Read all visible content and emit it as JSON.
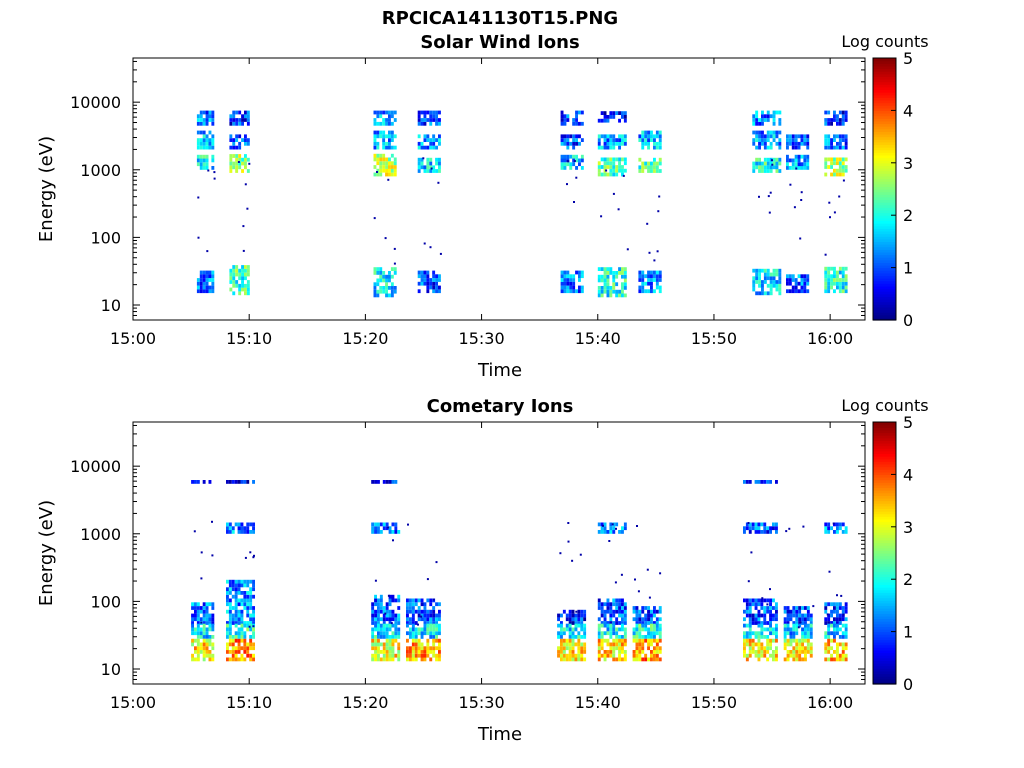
{
  "figure": {
    "title": "RPCICA141130T15.PNG"
  },
  "chart_data": [
    {
      "type": "heatmap",
      "title": "Solar Wind Ions",
      "xlabel": "Time",
      "ylabel": "Energy (eV)",
      "x_ticks": [
        "15:00",
        "15:10",
        "15:20",
        "15:30",
        "15:40",
        "15:50",
        "16:00"
      ],
      "x_range": [
        "15:00",
        "16:03"
      ],
      "y_scale": "log",
      "y_ticks": [
        "10",
        "100",
        "1000",
        "10000"
      ],
      "y_range": [
        6,
        45000
      ],
      "colorbar": {
        "label": "Log counts",
        "range": [
          0,
          5
        ],
        "ticks": [
          "0",
          "1",
          "2",
          "3",
          "4",
          "5"
        ],
        "colormap": "jet"
      },
      "bursts": [
        {
          "time_min": [
            5.5,
            7.0
          ],
          "groups": [
            {
              "energy": [
                4500,
                7000
              ],
              "level": 1.2
            },
            {
              "energy": [
                2000,
                3500
              ],
              "level": 1.6
            },
            {
              "energy": [
                1000,
                1600
              ],
              "level": 1.8
            },
            {
              "energy": [
                15,
                32
              ],
              "level": 1.2
            }
          ]
        },
        {
          "time_min": [
            8.3,
            10.0
          ],
          "groups": [
            {
              "energy": [
                4500,
                7500
              ],
              "level": 0.8
            },
            {
              "energy": [
                2000,
                3200
              ],
              "level": 1.0
            },
            {
              "energy": [
                900,
                1700
              ],
              "level": 2.6
            },
            {
              "energy": [
                14,
                35
              ],
              "level": 2.2
            }
          ]
        },
        {
          "time_min": [
            20.7,
            22.5
          ],
          "groups": [
            {
              "energy": [
                4500,
                7000
              ],
              "level": 1.3
            },
            {
              "energy": [
                2000,
                3500
              ],
              "level": 1.5
            },
            {
              "energy": [
                800,
                1600
              ],
              "level": 2.8
            },
            {
              "energy": [
                13,
                35
              ],
              "level": 1.8
            }
          ]
        },
        {
          "time_min": [
            24.5,
            26.5
          ],
          "groups": [
            {
              "energy": [
                4500,
                7000
              ],
              "level": 1.0
            },
            {
              "energy": [
                2000,
                3200
              ],
              "level": 1.4
            },
            {
              "energy": [
                900,
                1500
              ],
              "level": 1.7
            },
            {
              "energy": [
                15,
                30
              ],
              "level": 1.0
            }
          ]
        },
        {
          "time_min": [
            36.8,
            38.8
          ],
          "groups": [
            {
              "energy": [
                4500,
                7000
              ],
              "level": 1.0
            },
            {
              "energy": [
                2000,
                3200
              ],
              "level": 1.0
            },
            {
              "energy": [
                1000,
                1500
              ],
              "level": 1.6
            },
            {
              "energy": [
                15,
                30
              ],
              "level": 1.2
            }
          ]
        },
        {
          "time_min": [
            40.0,
            42.5
          ],
          "groups": [
            {
              "energy": [
                5000,
                7000
              ],
              "level": 0.8
            },
            {
              "energy": [
                2000,
                3200
              ],
              "level": 1.4
            },
            {
              "energy": [
                800,
                1500
              ],
              "level": 2.3
            },
            {
              "energy": [
                13,
                35
              ],
              "level": 2.0
            }
          ]
        },
        {
          "time_min": [
            43.5,
            45.5
          ],
          "groups": [
            {
              "energy": [
                2000,
                3500
              ],
              "level": 1.5
            },
            {
              "energy": [
                900,
                1400
              ],
              "level": 2.2
            },
            {
              "energy": [
                15,
                32
              ],
              "level": 1.4
            }
          ]
        },
        {
          "time_min": [
            53.3,
            55.7
          ],
          "groups": [
            {
              "energy": [
                4500,
                7000
              ],
              "level": 1.2
            },
            {
              "energy": [
                2000,
                3500
              ],
              "level": 1.4
            },
            {
              "energy": [
                900,
                1400
              ],
              "level": 2.0
            },
            {
              "energy": [
                14,
                32
              ],
              "level": 1.7
            }
          ]
        },
        {
          "time_min": [
            56.2,
            58.2
          ],
          "groups": [
            {
              "energy": [
                2000,
                3000
              ],
              "level": 1.1
            },
            {
              "energy": [
                1000,
                1500
              ],
              "level": 1.4
            },
            {
              "energy": [
                15,
                28
              ],
              "level": 1.1
            }
          ]
        },
        {
          "time_min": [
            59.5,
            61.5
          ],
          "groups": [
            {
              "energy": [
                4500,
                7000
              ],
              "level": 0.8
            },
            {
              "energy": [
                2000,
                3200
              ],
              "level": 1.1
            },
            {
              "energy": [
                800,
                1500
              ],
              "level": 2.7
            },
            {
              "energy": [
                15,
                33
              ],
              "level": 2.0
            }
          ]
        }
      ]
    },
    {
      "type": "heatmap",
      "title": "Cometary Ions",
      "xlabel": "Time",
      "ylabel": "Energy (eV)",
      "x_ticks": [
        "15:00",
        "15:10",
        "15:20",
        "15:30",
        "15:40",
        "15:50",
        "16:00"
      ],
      "x_range": [
        "15:00",
        "16:03"
      ],
      "y_scale": "log",
      "y_ticks": [
        "10",
        "100",
        "1000",
        "10000"
      ],
      "y_range": [
        6,
        45000
      ],
      "colorbar": {
        "label": "Log counts",
        "range": [
          0,
          5
        ],
        "ticks": [
          "0",
          "1",
          "2",
          "3",
          "4",
          "5"
        ],
        "colormap": "jet"
      },
      "bursts": [
        {
          "time_min": [
            5.0,
            7.0
          ],
          "groups": [
            {
              "energy": [
                45,
                90
              ],
              "level": 1.2
            },
            {
              "energy": [
                28,
                45
              ],
              "level": 1.8
            },
            {
              "energy": [
                13,
                28
              ],
              "level": 3.2
            },
            {
              "energy": [
                5500,
                6200
              ],
              "level": 0.6
            }
          ]
        },
        {
          "time_min": [
            8.0,
            10.5
          ],
          "groups": [
            {
              "energy": [
                45,
                200
              ],
              "level": 1.3
            },
            {
              "energy": [
                28,
                45
              ],
              "level": 2.0
            },
            {
              "energy": [
                13,
                28
              ],
              "level": 3.6
            },
            {
              "energy": [
                1000,
                1300
              ],
              "level": 1.3
            },
            {
              "energy": [
                5500,
                6200
              ],
              "level": 0.7
            }
          ]
        },
        {
          "time_min": [
            20.5,
            23.0
          ],
          "groups": [
            {
              "energy": [
                45,
                120
              ],
              "level": 1.1
            },
            {
              "energy": [
                28,
                45
              ],
              "level": 1.8
            },
            {
              "energy": [
                13,
                28
              ],
              "level": 3.1
            },
            {
              "energy": [
                1000,
                1300
              ],
              "level": 1.2
            },
            {
              "energy": [
                5500,
                6200
              ],
              "level": 0.7
            }
          ]
        },
        {
          "time_min": [
            23.5,
            26.5
          ],
          "groups": [
            {
              "energy": [
                45,
                110
              ],
              "level": 1.0
            },
            {
              "energy": [
                28,
                45
              ],
              "level": 1.8
            },
            {
              "energy": [
                13,
                28
              ],
              "level": 3.5
            }
          ]
        },
        {
          "time_min": [
            36.5,
            39.0
          ],
          "groups": [
            {
              "energy": [
                45,
                70
              ],
              "level": 0.8
            },
            {
              "energy": [
                28,
                45
              ],
              "level": 1.8
            },
            {
              "energy": [
                13,
                28
              ],
              "level": 3.2
            }
          ]
        },
        {
          "time_min": [
            40.0,
            42.5
          ],
          "groups": [
            {
              "energy": [
                45,
                110
              ],
              "level": 1.0
            },
            {
              "energy": [
                28,
                45
              ],
              "level": 1.8
            },
            {
              "energy": [
                13,
                28
              ],
              "level": 3.3
            },
            {
              "energy": [
                1000,
                1300
              ],
              "level": 1.3
            }
          ]
        },
        {
          "time_min": [
            43.0,
            45.5
          ],
          "groups": [
            {
              "energy": [
                45,
                80
              ],
              "level": 1.0
            },
            {
              "energy": [
                28,
                45
              ],
              "level": 2.0
            },
            {
              "energy": [
                13,
                28
              ],
              "level": 3.6
            }
          ]
        },
        {
          "time_min": [
            52.5,
            55.5
          ],
          "groups": [
            {
              "energy": [
                45,
                110
              ],
              "level": 1.0
            },
            {
              "energy": [
                28,
                45
              ],
              "level": 1.8
            },
            {
              "energy": [
                13,
                28
              ],
              "level": 3.2
            },
            {
              "energy": [
                1000,
                1400
              ],
              "level": 1.0
            },
            {
              "energy": [
                5500,
                6200
              ],
              "level": 0.8
            }
          ]
        },
        {
          "time_min": [
            56.0,
            58.5
          ],
          "groups": [
            {
              "energy": [
                45,
                80
              ],
              "level": 0.9
            },
            {
              "energy": [
                28,
                45
              ],
              "level": 1.6
            },
            {
              "energy": [
                13,
                28
              ],
              "level": 3.1
            }
          ]
        },
        {
          "time_min": [
            59.5,
            61.5
          ],
          "groups": [
            {
              "energy": [
                45,
                90
              ],
              "level": 0.9
            },
            {
              "energy": [
                28,
                45
              ],
              "level": 1.7
            },
            {
              "energy": [
                13,
                28
              ],
              "level": 3.4
            },
            {
              "energy": [
                1000,
                1400
              ],
              "level": 1.3
            }
          ]
        }
      ]
    }
  ]
}
